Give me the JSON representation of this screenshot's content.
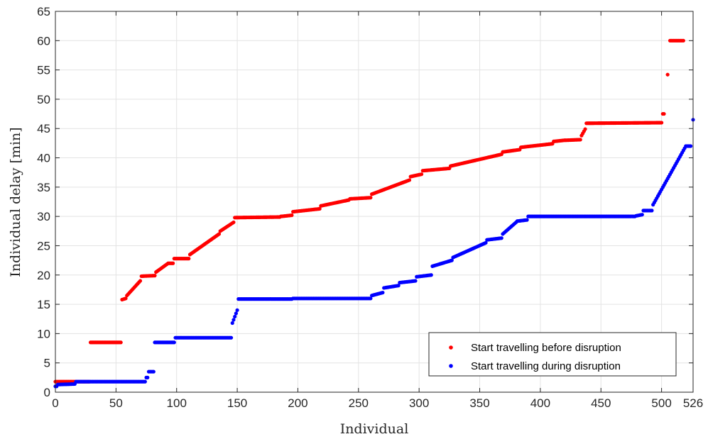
{
  "chart_data": {
    "type": "scatter",
    "xlabel": "Individual",
    "ylabel": "Individual delay [min]",
    "xlim": [
      0,
      526
    ],
    "ylim": [
      0,
      65
    ],
    "xticks": [
      0,
      50,
      100,
      150,
      200,
      250,
      300,
      350,
      400,
      450,
      500,
      526
    ],
    "yticks": [
      0,
      5,
      10,
      15,
      20,
      25,
      30,
      35,
      40,
      45,
      50,
      55,
      60,
      65
    ],
    "grid": true,
    "legend_position": "bottom-right",
    "series": [
      {
        "name": "Start travelling before disruption",
        "color": "#ff0000",
        "segments": [
          {
            "x": [
              0,
              28
            ],
            "y": [
              1.8,
              1.8
            ]
          },
          {
            "x": [
              29,
              54
            ],
            "y": [
              8.5,
              8.5
            ]
          },
          {
            "x": [
              55,
              58
            ],
            "y": [
              15.8,
              16.0
            ]
          },
          {
            "x": [
              59,
              70
            ],
            "y": [
              16.5,
              19.0
            ]
          },
          {
            "x": [
              71,
              82
            ],
            "y": [
              19.8,
              19.9
            ]
          },
          {
            "x": [
              83,
              93
            ],
            "y": [
              20.5,
              22.0
            ]
          },
          {
            "x": [
              94,
              97
            ],
            "y": [
              22.0,
              22.0
            ]
          },
          {
            "x": [
              98,
              110
            ],
            "y": [
              22.8,
              22.8
            ]
          },
          {
            "x": [
              111,
              135
            ],
            "y": [
              23.5,
              27.0
            ]
          },
          {
            "x": [
              136,
              147
            ],
            "y": [
              27.5,
              29.0
            ]
          },
          {
            "x": [
              148,
              185
            ],
            "y": [
              29.8,
              29.9
            ]
          },
          {
            "x": [
              186,
              195
            ],
            "y": [
              30.0,
              30.2
            ]
          },
          {
            "x": [
              196,
              218
            ],
            "y": [
              30.8,
              31.3
            ]
          },
          {
            "x": [
              219,
              242
            ],
            "y": [
              31.8,
              32.8
            ]
          },
          {
            "x": [
              243,
              260
            ],
            "y": [
              33.0,
              33.2
            ]
          },
          {
            "x": [
              261,
              292
            ],
            "y": [
              33.8,
              36.2
            ]
          },
          {
            "x": [
              293,
              302
            ],
            "y": [
              36.8,
              37.2
            ]
          },
          {
            "x": [
              303,
              325
            ],
            "y": [
              37.8,
              38.2
            ]
          },
          {
            "x": [
              326,
              368
            ],
            "y": [
              38.6,
              40.6
            ]
          },
          {
            "x": [
              369,
              383
            ],
            "y": [
              41.0,
              41.4
            ]
          },
          {
            "x": [
              384,
              410
            ],
            "y": [
              41.8,
              42.4
            ]
          },
          {
            "x": [
              411,
              420
            ],
            "y": [
              42.8,
              43.0
            ]
          },
          {
            "x": [
              421,
              433
            ],
            "y": [
              43.0,
              43.1
            ]
          },
          {
            "x": [
              434,
              437
            ],
            "y": [
              43.8,
              44.9
            ]
          },
          {
            "x": [
              438,
              500
            ],
            "y": [
              45.9,
              46.0
            ]
          },
          {
            "x": [
              501,
              502
            ],
            "y": [
              47.5,
              47.5
            ]
          },
          {
            "x": [
              505,
              505
            ],
            "y": [
              54.2,
              54.2
            ]
          },
          {
            "x": [
              507,
              518
            ],
            "y": [
              60.0,
              60.0
            ]
          }
        ]
      },
      {
        "name": "Start travelling during disruption",
        "color": "#0000ff",
        "segments": [
          {
            "x": [
              0,
              1
            ],
            "y": [
              1.0,
              1.0
            ]
          },
          {
            "x": [
              2,
              16
            ],
            "y": [
              1.3,
              1.4
            ]
          },
          {
            "x": [
              17,
              74
            ],
            "y": [
              1.8,
              1.8
            ]
          },
          {
            "x": [
              75,
              76
            ],
            "y": [
              2.5,
              2.5
            ]
          },
          {
            "x": [
              77,
              81
            ],
            "y": [
              3.5,
              3.5
            ]
          },
          {
            "x": [
              82,
              98
            ],
            "y": [
              8.5,
              8.5
            ]
          },
          {
            "x": [
              99,
              145
            ],
            "y": [
              9.3,
              9.3
            ]
          },
          {
            "x": [
              146,
              150
            ],
            "y": [
              11.8,
              14.0
            ]
          },
          {
            "x": [
              151,
              195
            ],
            "y": [
              15.9,
              15.9
            ]
          },
          {
            "x": [
              196,
              260
            ],
            "y": [
              16.0,
              16.0
            ]
          },
          {
            "x": [
              261,
              270
            ],
            "y": [
              16.5,
              17.0
            ]
          },
          {
            "x": [
              271,
              283
            ],
            "y": [
              17.8,
              18.2
            ]
          },
          {
            "x": [
              284,
              297
            ],
            "y": [
              18.7,
              19.0
            ]
          },
          {
            "x": [
              298,
              310
            ],
            "y": [
              19.7,
              20.0
            ]
          },
          {
            "x": [
              311,
              327
            ],
            "y": [
              21.5,
              22.5
            ]
          },
          {
            "x": [
              328,
              355
            ],
            "y": [
              23.0,
              25.5
            ]
          },
          {
            "x": [
              356,
              368
            ],
            "y": [
              26.0,
              26.3
            ]
          },
          {
            "x": [
              369,
              380
            ],
            "y": [
              27.0,
              29.0
            ]
          },
          {
            "x": [
              381,
              389
            ],
            "y": [
              29.2,
              29.4
            ]
          },
          {
            "x": [
              390,
              478
            ],
            "y": [
              30.0,
              30.0
            ]
          },
          {
            "x": [
              479,
              484
            ],
            "y": [
              30.1,
              30.3
            ]
          },
          {
            "x": [
              485,
              492
            ],
            "y": [
              31.0,
              31.0
            ]
          },
          {
            "x": [
              493,
              520
            ],
            "y": [
              32.0,
              42.0
            ]
          },
          {
            "x": [
              521,
              524
            ],
            "y": [
              42.0,
              42.0
            ]
          },
          {
            "x": [
              526,
              526
            ],
            "y": [
              46.5,
              46.5
            ]
          }
        ]
      }
    ]
  }
}
